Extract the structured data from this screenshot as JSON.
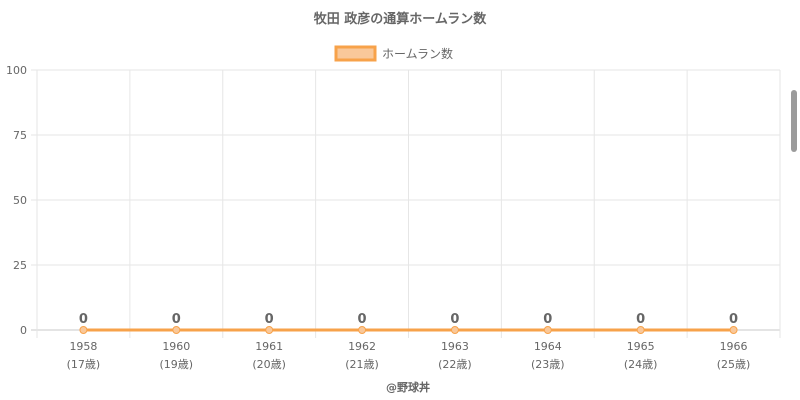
{
  "chart_data": {
    "type": "line",
    "title": "牧田 政彦の通算ホームラン数",
    "legend": "top",
    "grid": true,
    "categories": [
      "1958",
      "1960",
      "1961",
      "1962",
      "1963",
      "1964",
      "1965",
      "1966"
    ],
    "age_labels": [
      "(17歳)",
      "(19歳)",
      "(20歳)",
      "(21歳)",
      "(22歳)",
      "(23歳)",
      "(24歳)",
      "(25歳)"
    ],
    "series": [
      {
        "name": "ホームラン数",
        "values": [
          0,
          0,
          0,
          0,
          0,
          0,
          0,
          0
        ],
        "color": "#f7a24a",
        "fill": "#f9c89a"
      }
    ],
    "y_ticks": [
      "0",
      "25",
      "50",
      "75",
      "100"
    ],
    "ylim": [
      0,
      100
    ],
    "credit": "@野球丼"
  }
}
